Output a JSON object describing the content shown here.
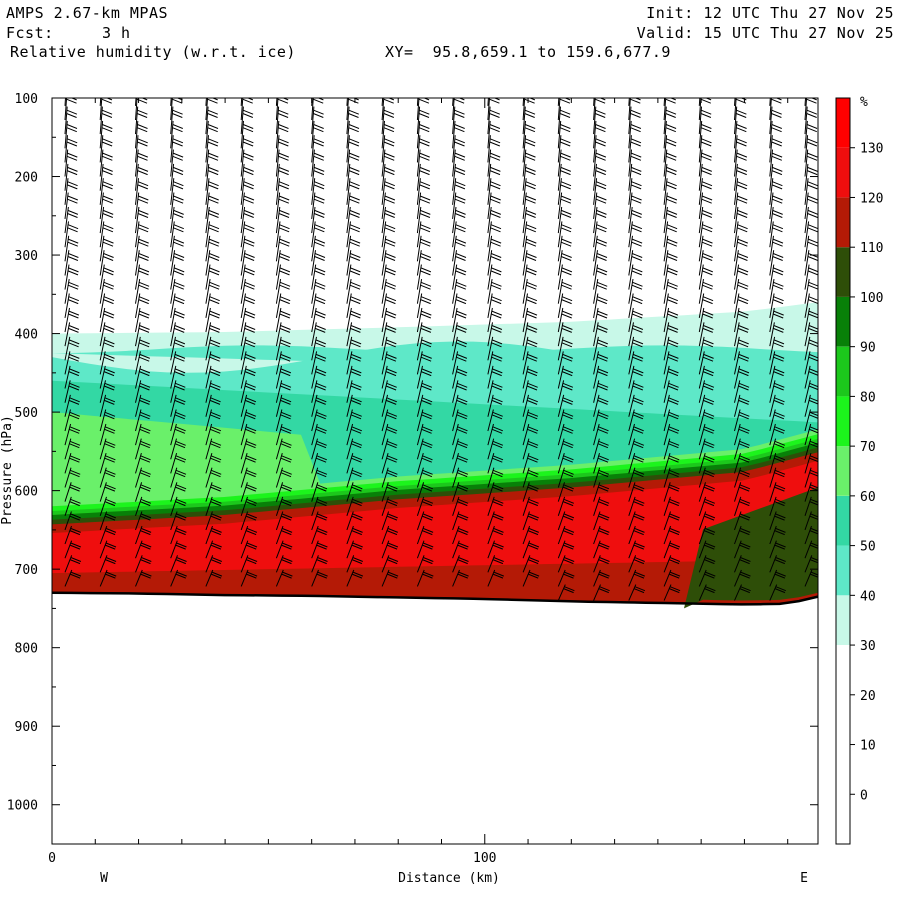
{
  "header": {
    "model": "AMPS 2.67-km MPAS",
    "fcst_label": "Fcst:",
    "fcst_value": "3 h",
    "field": "Relative humidity (w.r.t. ice)",
    "xy": "XY=  95.8,659.1 to 159.6,677.9",
    "init": "Init: 12 UTC Thu 27 Nov 25",
    "valid": "Valid: 15 UTC Thu 27 Nov 25"
  },
  "chart_data": {
    "type": "heatmap",
    "title": "Relative humidity (w.r.t. ice)",
    "xlabel": "Distance (km)",
    "ylabel": "Pressure (hPa)",
    "x_ticks": [
      "0",
      "100"
    ],
    "x_ends": [
      "W",
      "E"
    ],
    "xlim": [
      0,
      177
    ],
    "ylim": [
      1050,
      100
    ],
    "y_ticks": [
      100,
      200,
      300,
      400,
      500,
      600,
      700,
      800,
      900,
      1000
    ],
    "colorbar": {
      "unit": "%",
      "levels": [
        -10,
        0,
        10,
        20,
        30,
        40,
        50,
        60,
        70,
        80,
        90,
        100,
        110,
        120,
        130,
        140
      ],
      "labels": [
        "0",
        "10",
        "20",
        "30",
        "40",
        "50",
        "60",
        "70",
        "80",
        "90",
        "100",
        "110",
        "120",
        "130"
      ],
      "colors": [
        "#ffffff",
        "#ffffff",
        "#ffffff",
        "#ffffff",
        "#c8f8e8",
        "#5ee8c8",
        "#33d8a4",
        "#6af06a",
        "#1cf41c",
        "#1cc81c",
        "#088008",
        "#2e4e08",
        "#b41a06",
        "#ef0e0e",
        "#ff0000"
      ]
    },
    "terrain_pressure_hPa": [
      [
        0,
        730
      ],
      [
        20,
        731
      ],
      [
        40,
        733
      ],
      [
        60,
        734
      ],
      [
        80,
        736
      ],
      [
        100,
        738
      ],
      [
        120,
        741
      ],
      [
        140,
        743
      ],
      [
        160,
        745
      ],
      [
        170,
        744
      ],
      [
        177,
        735
      ]
    ],
    "rh_layers": [
      {
        "name": "moist_layer_top",
        "x": [
          0,
          40,
          80,
          120,
          160,
          177
        ],
        "p": [
          632,
          620,
          600,
          585,
          565,
          540
        ]
      },
      {
        "name": "cloud_layer_base",
        "x": [
          0,
          177
        ],
        "p": [
          730,
          735
        ]
      },
      {
        "name": "ice_sat_layer_top",
        "x": [
          0,
          40,
          80,
          120,
          160,
          177
        ],
        "p": [
          400,
          398,
          392,
          385,
          372,
          360
        ]
      }
    ],
    "grid": false
  }
}
